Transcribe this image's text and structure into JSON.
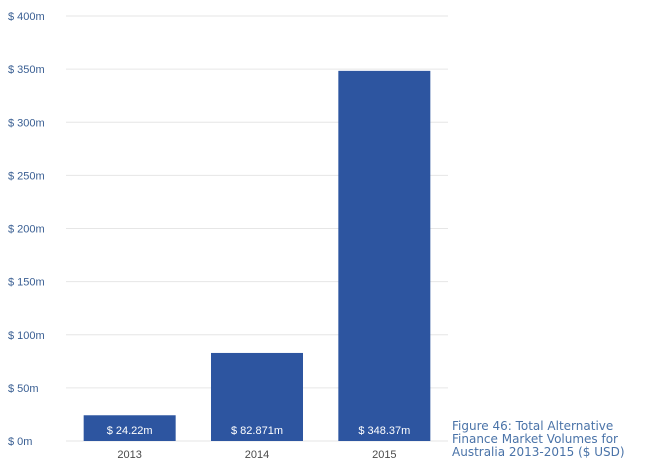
{
  "chart_data": {
    "type": "bar",
    "categories": [
      "2013",
      "2014",
      "2015"
    ],
    "values": [
      24.22,
      82.871,
      348.37
    ],
    "data_labels": [
      "$ 24.22m",
      "$ 82.871m",
      "$ 348.37m"
    ],
    "ylim": [
      0,
      400
    ],
    "y_ticks": [
      0,
      50,
      100,
      150,
      200,
      250,
      300,
      350,
      400
    ],
    "y_tick_labels": [
      "$ 0m",
      "$ 50m",
      "$ 100m",
      "$ 150m",
      "$ 200m",
      "$ 250m",
      "$ 300m",
      "$ 350m",
      "$ 400m"
    ],
    "grid": true,
    "legend": "none",
    "colors": {
      "bar": "#2d55a0",
      "grid": "#e6e6e6",
      "axis_text": "#3a5f93"
    }
  },
  "caption": {
    "lines": [
      "Figure 46: Total Alternative",
      "Finance Market Volumes for",
      "Australia 2013-2015 ($ USD)"
    ]
  }
}
